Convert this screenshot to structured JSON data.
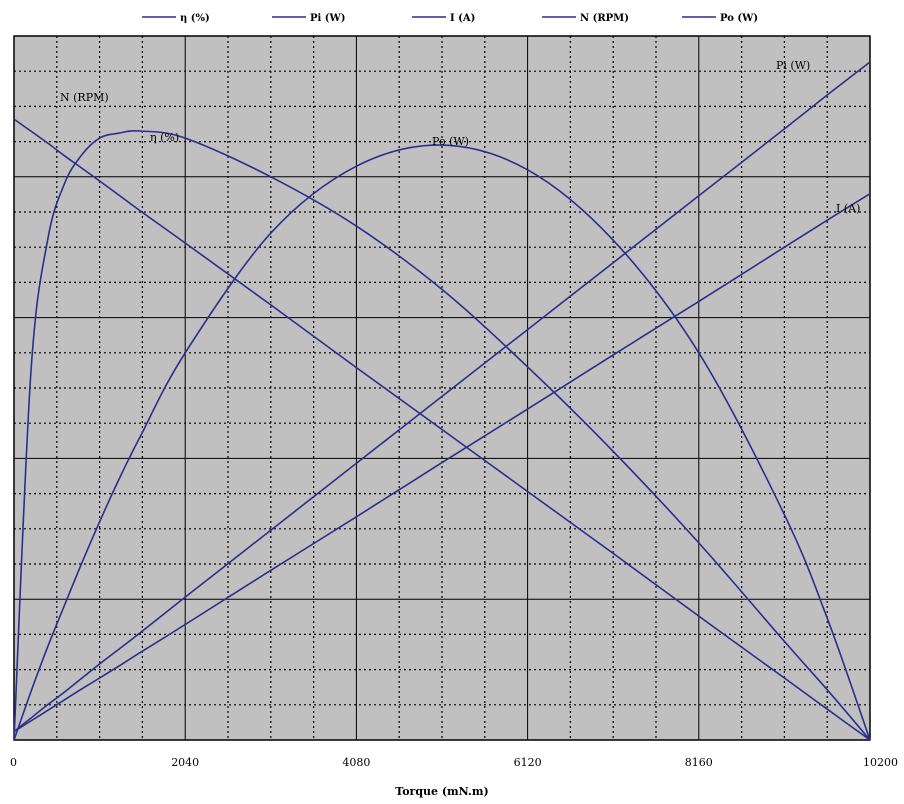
{
  "chart_data": {
    "type": "line",
    "xlabel": "Torque (mN.m)",
    "xlim": [
      0,
      10200
    ],
    "x_ticks": [
      "0",
      "2040",
      "4080",
      "6120",
      "8160",
      "10200"
    ],
    "ylim": [
      0,
      1
    ],
    "grid": true,
    "legend_position": "top",
    "colors": {
      "plot_background": "#c0c0c0",
      "series": "#2b2f8c",
      "major_grid": "#000000",
      "minor_grid": "#000000"
    },
    "x": [
      0,
      200,
      400,
      600,
      800,
      1020,
      1250,
      1500,
      2040,
      3060,
      4080,
      5100,
      6120,
      7140,
      8160,
      9180,
      9700,
      10200
    ],
    "series": [
      {
        "name": "η (%)",
        "curve_label": "η (%)",
        "values": [
          0.0,
          0.52,
          0.71,
          0.79,
          0.83,
          0.855,
          0.862,
          0.865,
          0.855,
          0.8,
          0.73,
          0.64,
          0.53,
          0.41,
          0.28,
          0.14,
          0.07,
          0.0
        ]
      },
      {
        "name": "Pi (W)",
        "curve_label": "Pi (W)",
        "values": [
          0.012,
          0.031,
          0.05,
          0.068,
          0.087,
          0.108,
          0.129,
          0.152,
          0.203,
          0.298,
          0.393,
          0.488,
          0.583,
          0.678,
          0.773,
          0.868,
          0.917,
          0.963
        ]
      },
      {
        "name": "I (A)",
        "curve_label": "I (A)",
        "values": [
          0.012,
          0.027,
          0.042,
          0.057,
          0.072,
          0.088,
          0.105,
          0.124,
          0.164,
          0.241,
          0.317,
          0.394,
          0.47,
          0.547,
          0.623,
          0.7,
          0.739,
          0.776
        ]
      },
      {
        "name": "N (RPM)",
        "curve_label": "N (RPM)",
        "values": [
          0.882,
          0.865,
          0.848,
          0.83,
          0.813,
          0.794,
          0.774,
          0.752,
          0.706,
          0.618,
          0.529,
          0.441,
          0.353,
          0.265,
          0.176,
          0.088,
          0.043,
          0.0
        ]
      },
      {
        "name": "Po (W)",
        "curve_label": "Po (W)",
        "values": [
          0.0,
          0.068,
          0.132,
          0.191,
          0.249,
          0.31,
          0.37,
          0.43,
          0.55,
          0.72,
          0.815,
          0.845,
          0.81,
          0.71,
          0.55,
          0.32,
          0.17,
          0.0
        ]
      }
    ]
  }
}
